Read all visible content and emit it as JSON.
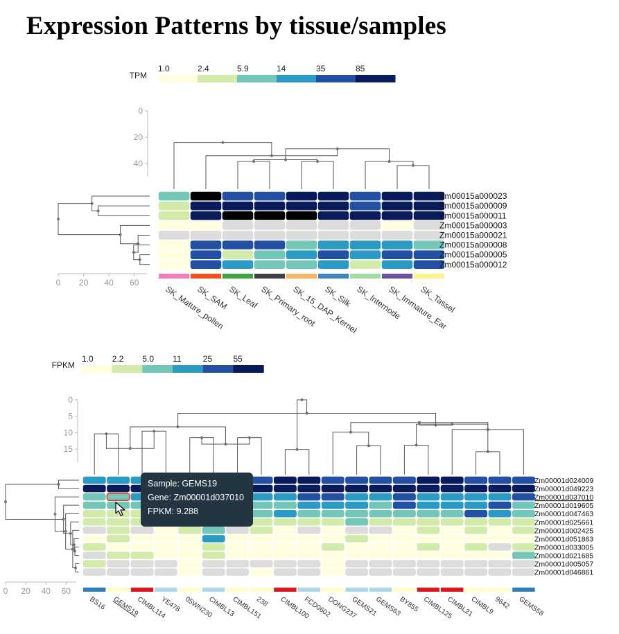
{
  "page": {
    "title": "Expression Patterns by tissue/samples"
  },
  "colors": {
    "scale": [
      "#ffffe0",
      "#d3ebaa",
      "#74c7b8",
      "#2c9bc4",
      "#2450a3",
      "#0a1b5c"
    ],
    "missing": "#dcdcdc",
    "tree": "#555555",
    "tooltip_bg": "#243542",
    "selected_outline": "#e0442b"
  },
  "chart_data": [
    {
      "type": "heatmap",
      "title": "",
      "legend": {
        "label": "TPM",
        "breaks": [
          "1.0",
          "2.4",
          "5.9",
          "14",
          "35",
          "85"
        ]
      },
      "column_dendrogram_axis": {
        "ticks": [
          "0",
          "20",
          "40"
        ],
        "range": [
          0,
          50
        ]
      },
      "row_dendrogram_axis": {
        "ticks": [
          "0",
          "20",
          "40",
          "60"
        ],
        "range": [
          0,
          70
        ]
      },
      "columns": [
        "SK_Mature_pollen",
        "SK_SAM",
        "SK_Leaf",
        "SK_Primary_root",
        "SK_15_DAP_Kernel",
        "SK_Silk",
        "SK_Internode",
        "SK_Immature_Ear",
        "SK_Tassel"
      ],
      "column_colors": [
        "#f07fbf",
        "#f0501e",
        "#3ea541",
        "#404040",
        "#f9b368",
        "#3c87c2",
        "#a6dba0",
        "#6a51a3",
        "#fbf58a"
      ],
      "rows": [
        "Zm00015a000023",
        "Zm00015a000009",
        "Zm00015a000011",
        "Zm00015a000003",
        "Zm00015a000021",
        "Zm00015a000008",
        "Zm00015a000005",
        "Zm00015a000012"
      ],
      "values": [
        [
          2,
          6,
          4,
          4,
          5,
          5,
          4,
          5,
          5
        ],
        [
          1,
          5,
          5,
          5,
          5,
          5,
          4,
          5,
          5
        ],
        [
          1,
          5,
          6,
          6,
          6,
          5,
          5,
          5,
          5
        ],
        [
          0,
          0,
          null,
          null,
          null,
          null,
          null,
          0,
          null
        ],
        [
          null,
          null,
          null,
          null,
          null,
          null,
          null,
          null,
          null
        ],
        [
          0,
          4,
          4,
          4,
          2,
          3,
          3,
          3,
          2
        ],
        [
          0,
          4,
          1,
          2,
          3,
          4,
          3,
          4,
          4
        ],
        [
          0,
          4,
          3,
          2,
          2,
          3,
          1,
          3,
          4
        ]
      ]
    },
    {
      "type": "heatmap",
      "title": "",
      "legend": {
        "label": "FPKM",
        "breaks": [
          "1.0",
          "2.2",
          "5.0",
          "11",
          "25",
          "55"
        ]
      },
      "column_dendrogram_axis": {
        "ticks": [
          "0",
          "5",
          "10",
          "15"
        ],
        "range": [
          0,
          19
        ]
      },
      "row_dendrogram_axis": {
        "ticks": [
          "0",
          "20",
          "40",
          "60"
        ],
        "range": [
          0,
          70
        ]
      },
      "columns": [
        "BS16",
        "GEMS19",
        "CIMBL114",
        "YE478",
        "05WN230",
        "CIMBL13",
        "CIMBL151",
        "238",
        "CIMBL100",
        "FCD0602",
        "DONG237",
        "GEMS21",
        "GEMS63",
        "BY855",
        "CIMBL125",
        "CIMBL21",
        "CIMBL9",
        "9642",
        "GEMS58"
      ],
      "column_colors": [
        "#2c7fb8",
        "#ffffcc",
        "#d7191c",
        "#abd9e9",
        "#ffffcc",
        "#abd9e9",
        "#ffffcc",
        "#ffffcc",
        "#d7191c",
        "#abd9e9",
        "#ffffcc",
        "#abd9e9",
        "#abd9e9",
        "#ffffcc",
        "#d7191c",
        "#d7191c",
        "#ffffcc",
        "#ffffcc",
        "#2c7fb8"
      ],
      "rows": [
        "Zm00001d024009",
        "Zm00001d049223",
        "Zm00001d037010",
        "Zm00001d019605",
        "Zm00001d047463",
        "Zm00001d025661",
        "Zm00001d002425",
        "Zm00001d051863",
        "Zm00001d033005",
        "Zm00001d021685",
        "Zm00001d005057",
        "Zm00001d046861"
      ],
      "highlighted_row": "Zm00001d037010",
      "highlighted_column": "GEMS19",
      "values": [
        [
          3,
          3,
          3,
          4,
          4,
          4,
          4,
          4,
          5,
          5,
          4,
          4,
          4,
          4,
          5,
          5,
          4,
          4,
          4
        ],
        [
          5,
          5,
          5,
          5,
          5,
          5,
          5,
          5,
          5,
          5,
          5,
          5,
          5,
          5,
          5,
          5,
          5,
          5,
          5
        ],
        [
          2,
          2,
          3,
          3,
          3,
          3,
          3,
          3,
          3,
          4,
          4,
          3,
          3,
          4,
          3,
          3,
          3,
          3,
          4
        ],
        [
          2,
          2,
          2,
          2,
          2,
          2,
          2,
          2,
          2,
          3,
          3,
          3,
          2,
          4,
          3,
          3,
          3,
          4,
          2
        ],
        [
          1,
          1,
          1,
          1,
          1,
          2,
          2,
          2,
          3,
          2,
          2,
          2,
          2,
          2,
          2,
          2,
          4,
          3,
          2
        ],
        [
          1,
          1,
          1,
          1,
          1,
          1,
          1,
          1,
          1,
          1,
          1,
          2,
          1,
          1,
          1,
          1,
          1,
          1,
          1
        ],
        [
          null,
          1,
          null,
          0,
          1,
          2,
          null,
          1,
          0,
          null,
          0,
          null,
          null,
          0,
          1,
          0,
          1,
          0,
          1
        ],
        [
          0,
          1,
          0,
          0,
          0,
          3,
          0,
          0,
          0,
          0,
          0,
          1,
          0,
          0,
          0,
          0,
          0,
          0,
          0
        ],
        [
          1,
          0,
          0,
          0,
          0,
          1,
          0,
          0,
          0,
          0,
          1,
          0,
          0,
          0,
          1,
          0,
          1,
          null,
          1
        ],
        [
          null,
          1,
          1,
          0,
          0,
          1,
          0,
          0,
          0,
          0,
          0,
          0,
          0,
          0,
          0,
          0,
          0,
          0,
          2
        ],
        [
          1,
          null,
          null,
          null,
          0,
          null,
          null,
          null,
          null,
          null,
          0,
          null,
          null,
          null,
          null,
          null,
          null,
          null,
          null
        ],
        [
          null,
          null,
          null,
          null,
          0,
          null,
          null,
          0,
          null,
          null,
          0,
          null,
          null,
          null,
          null,
          null,
          null,
          null,
          null
        ]
      ]
    }
  ],
  "tooltip": {
    "sample_line": "Sample: GEMS19",
    "gene_line": "Gene: Zm00001d037010",
    "value_line": "FPKM: 9.288"
  }
}
